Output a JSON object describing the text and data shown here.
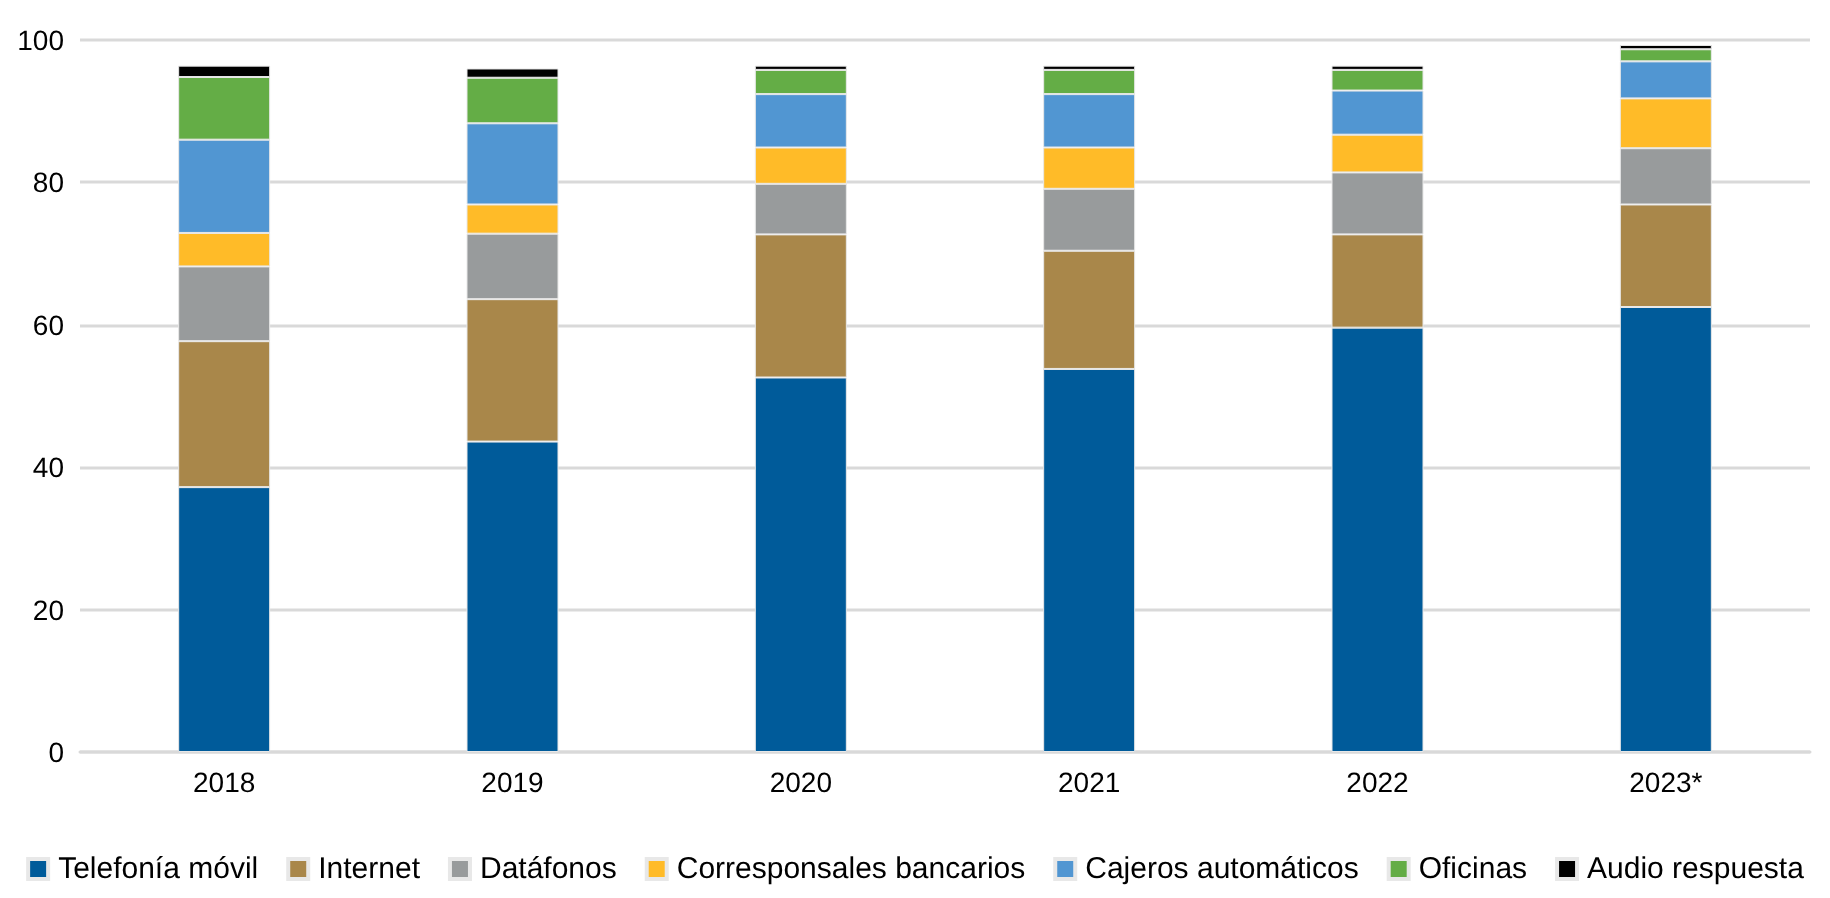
{
  "chart_data": {
    "type": "bar",
    "stacked": true,
    "categories": [
      "2018",
      "2019",
      "2020",
      "2021",
      "2022",
      "2023*"
    ],
    "series": [
      {
        "name": "Telefonía móvil",
        "color": "#005b9a",
        "values": [
          37.2,
          43.6,
          52.6,
          53.8,
          59.6,
          62.5
        ]
      },
      {
        "name": "Internet",
        "color": "#a9874a",
        "values": [
          20.5,
          20.0,
          20.1,
          16.6,
          13.1,
          14.4
        ]
      },
      {
        "name": "Datáfonos",
        "color": "#989b9c",
        "values": [
          10.5,
          9.2,
          7.1,
          8.7,
          8.7,
          7.9
        ]
      },
      {
        "name": "Corresponsales bancarios",
        "color": "#ffbb28",
        "values": [
          4.7,
          4.1,
          5.1,
          5.8,
          5.3,
          7.0
        ]
      },
      {
        "name": "Cajeros automáticos",
        "color": "#5196d2",
        "values": [
          13.1,
          11.4,
          7.5,
          7.5,
          6.2,
          5.2
        ]
      },
      {
        "name": "Oficinas",
        "color": "#64ad46",
        "values": [
          8.8,
          6.4,
          3.4,
          3.4,
          2.9,
          1.7
        ]
      },
      {
        "name": "Audio respuesta",
        "color": "#000000",
        "values": [
          1.6,
          1.3,
          0.6,
          0.6,
          0.6,
          0.6
        ]
      }
    ],
    "ylim": [
      0,
      100
    ],
    "yticks": [
      0,
      20,
      40,
      60,
      80,
      100
    ],
    "grid": "y",
    "legend": "bottom"
  }
}
